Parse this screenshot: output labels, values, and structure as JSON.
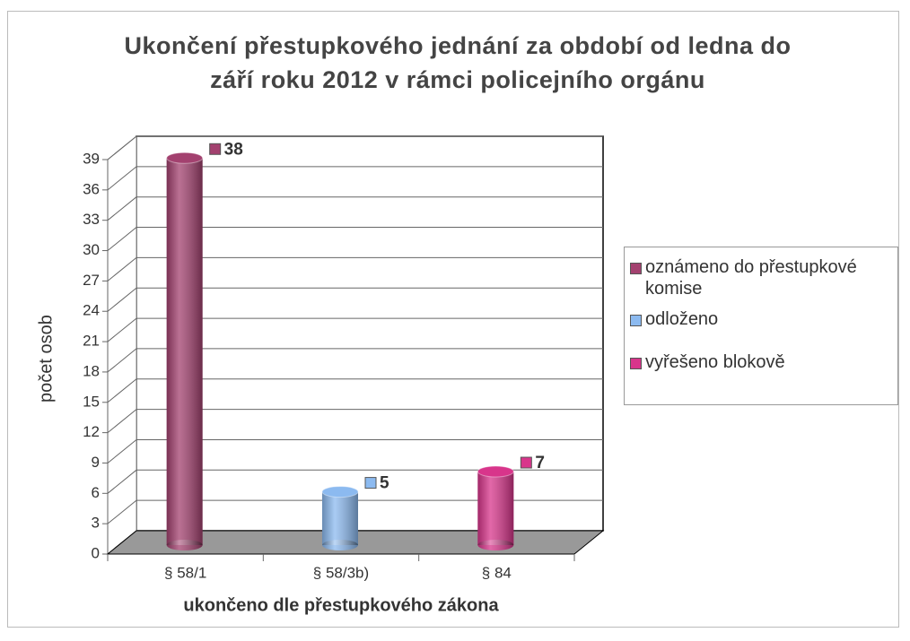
{
  "chart_data": {
    "type": "bar3d",
    "title": "Ukončení přestupkového jednání za období od ledna do září roku 2012 v rámci policejního orgánu",
    "x_label": "ukončeno dle přestupkového zákona",
    "y_label": "počet osob",
    "categories": [
      "§ 58/1",
      "§ 58/3b)",
      "§ 84"
    ],
    "series": [
      {
        "name": "oznámeno do přestupkové komise",
        "color": "#a3416f",
        "values": [
          38,
          null,
          null
        ]
      },
      {
        "name": "odloženo",
        "color": "#8cbaf0",
        "values": [
          null,
          5,
          null
        ]
      },
      {
        "name": "vyřešeno blokově",
        "color": "#d8358b",
        "values": [
          null,
          null,
          7
        ]
      }
    ],
    "ylim": [
      0,
      39
    ],
    "yticks": [
      0,
      3,
      6,
      9,
      12,
      15,
      18,
      21,
      24,
      27,
      30,
      33,
      36,
      39
    ],
    "grid": true,
    "legend": "right",
    "data_labels": true
  }
}
